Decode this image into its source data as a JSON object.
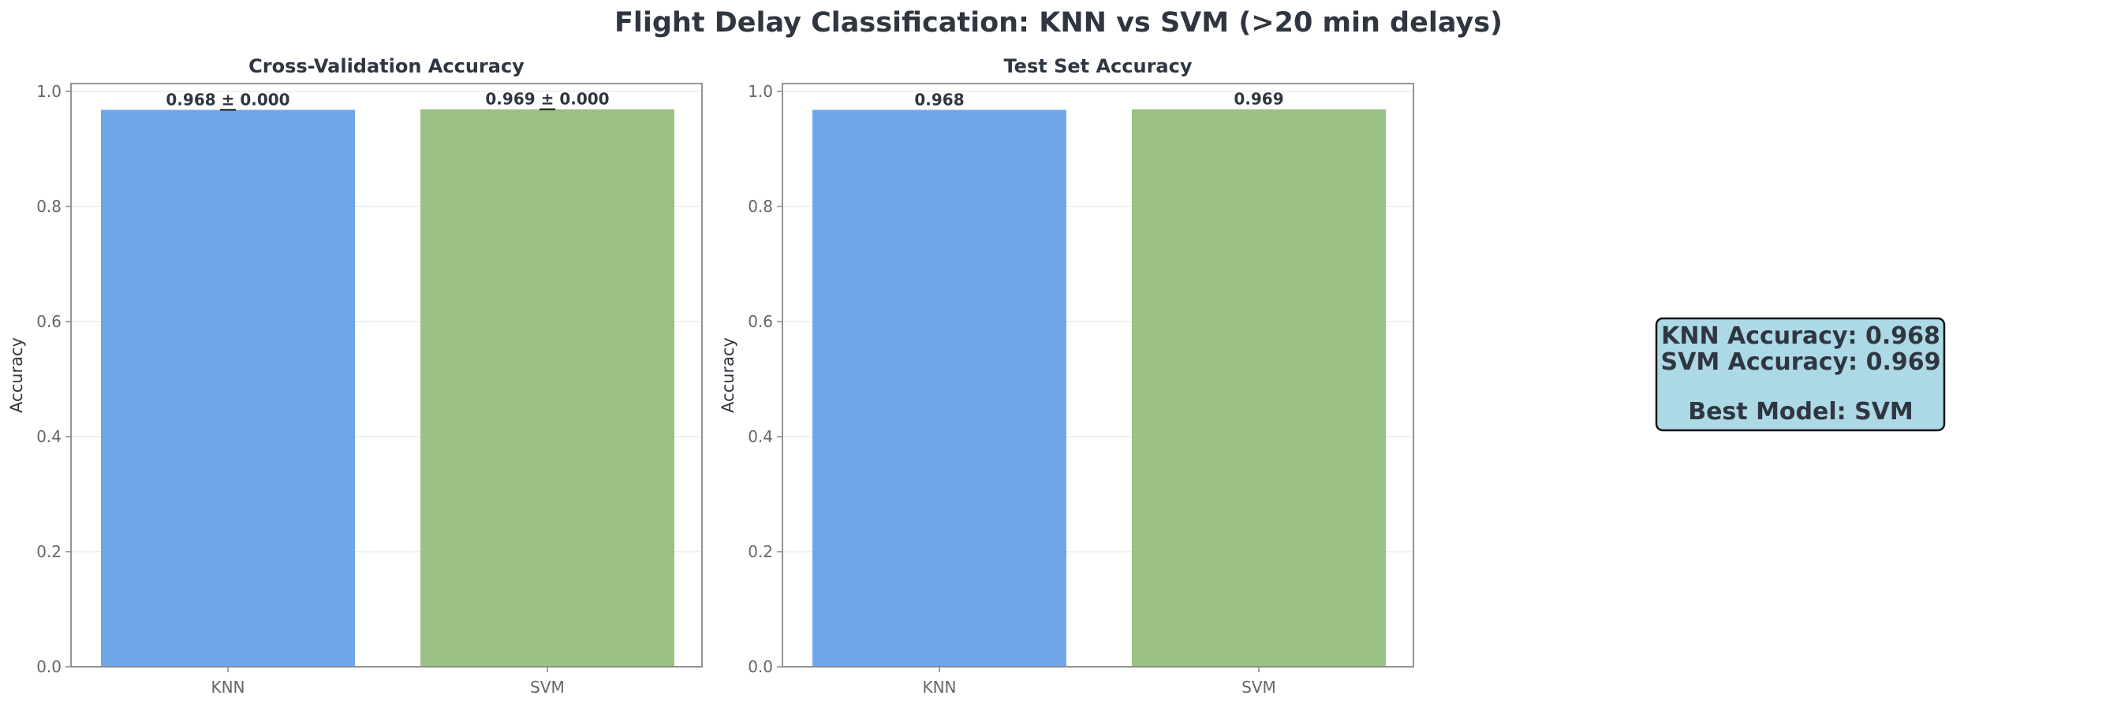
{
  "figure": {
    "suptitle": "Flight Delay Classification: KNN vs SVM (>20 min delays)"
  },
  "chart_data": [
    {
      "type": "bar",
      "title": "Cross-Validation Accuracy",
      "xlabel": "",
      "ylabel": "Accuracy",
      "ylim": [
        0,
        1.0
      ],
      "yticks": [
        "0.0",
        "0.2",
        "0.4",
        "0.6",
        "0.8",
        "1.0"
      ],
      "grid": true,
      "categories": [
        "KNN",
        "SVM"
      ],
      "values": [
        0.968,
        0.969
      ],
      "errors": [
        0.0,
        0.0
      ],
      "value_labels": [
        "0.968 ± 0.000",
        "0.969 ± 0.000"
      ],
      "colors": [
        "#4a90e2",
        "#82b366"
      ]
    },
    {
      "type": "bar",
      "title": "Test Set Accuracy",
      "xlabel": "",
      "ylabel": "Accuracy",
      "ylim": [
        0,
        1.0
      ],
      "yticks": [
        "0.0",
        "0.2",
        "0.4",
        "0.6",
        "0.8",
        "1.0"
      ],
      "grid": true,
      "categories": [
        "KNN",
        "SVM"
      ],
      "values": [
        0.968,
        0.969
      ],
      "value_labels": [
        "0.968",
        "0.969"
      ],
      "colors": [
        "#4a90e2",
        "#82b366"
      ]
    }
  ],
  "summary_box": {
    "lines": [
      "KNN Accuracy: 0.968",
      "SVM Accuracy: 0.969",
      "",
      "Best Model: SVM"
    ],
    "background": "#add8e6"
  },
  "colors": {
    "text": "#2f3640",
    "tick": "#666666",
    "axis": "#888888",
    "grid": "#e6e6e6"
  }
}
